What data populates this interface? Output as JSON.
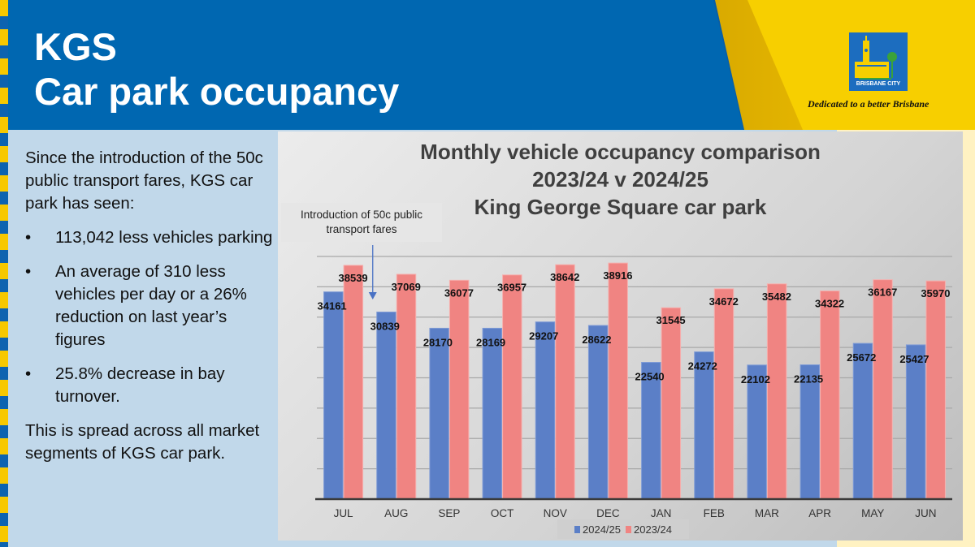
{
  "header": {
    "title_line1": "KGS",
    "title_line2": "Car park occupancy",
    "logo_text": "BRISBANE CITY",
    "tagline": "Dedicated to a better Brisbane"
  },
  "left_panel": {
    "intro": "Since the introduction of the 50c public transport fares, KGS car park has seen:",
    "bullets": [
      "113,042 less vehicles parking",
      "An average of 310 less vehicles per day or a 26% reduction on last year’s figures",
      "25.8% decrease in bay turnover."
    ],
    "bullet_symbol": "•",
    "outro": "This is spread across all market segments of KGS car park."
  },
  "colors": {
    "header_blue": "#0067b1",
    "brand_yellow": "#f7c800",
    "series_2024_25": "#5b7fc7",
    "series_2023_24": "#f08482"
  },
  "chart_data": {
    "type": "bar",
    "title": "Monthly vehicle occupancy comparison",
    "title_line2": "2023/24 v 2024/25",
    "title_line3": "King George Square car park",
    "categories": [
      "JUL",
      "AUG",
      "SEP",
      "OCT",
      "NOV",
      "DEC",
      "JAN",
      "FEB",
      "MAR",
      "APR",
      "MAY",
      "JUN"
    ],
    "series": [
      {
        "name": "2024/25",
        "color": "#5b7fc7",
        "values": [
          34161,
          30839,
          28170,
          28169,
          29207,
          28622,
          22540,
          24272,
          22102,
          22135,
          25672,
          25427
        ]
      },
      {
        "name": "2023/24",
        "color": "#f08482",
        "values": [
          38539,
          37069,
          36077,
          36957,
          38642,
          38916,
          31545,
          34672,
          35482,
          34322,
          36167,
          35970
        ]
      }
    ],
    "xlabel": "",
    "ylabel": "",
    "ylim": [
      0,
      40000
    ],
    "grid_step": 5000,
    "grid": true,
    "y_axis_labels_shown": false,
    "legend_position": "bottom",
    "annotation": {
      "text": "Introduction of 50c public transport fares",
      "points_to_category": "AUG"
    }
  }
}
